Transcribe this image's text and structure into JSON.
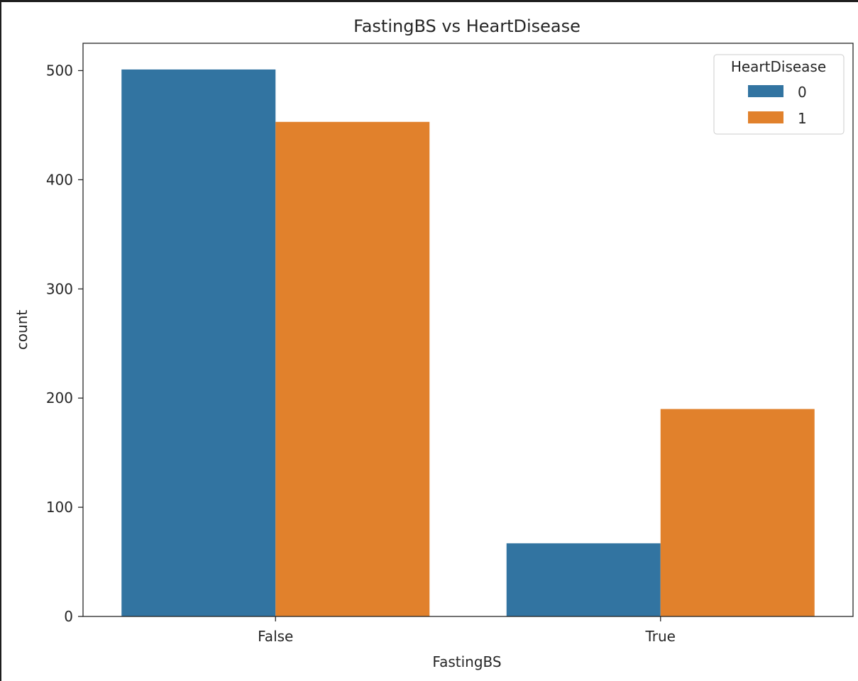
{
  "chart_data": {
    "type": "bar",
    "title": "FastingBS vs HeartDisease",
    "xlabel": "FastingBS",
    "ylabel": "count",
    "categories": [
      "False",
      "True"
    ],
    "series": [
      {
        "name": "0",
        "values": [
          501,
          67
        ],
        "color": "#3274a1"
      },
      {
        "name": "1",
        "values": [
          453,
          190
        ],
        "color": "#e1812c"
      }
    ],
    "ylim": [
      0,
      525
    ],
    "yticks": [
      0,
      100,
      200,
      300,
      400,
      500
    ],
    "legend": {
      "title": "HeartDisease",
      "position": "top-right"
    },
    "grid": false
  }
}
